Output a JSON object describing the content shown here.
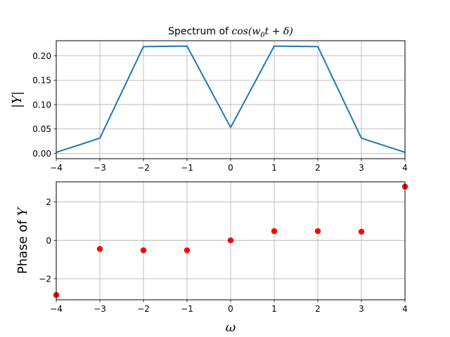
{
  "chart_data": [
    {
      "type": "line",
      "title": {
        "prefix": "Spectrum of ",
        "math": "cos(w",
        "sub": "0",
        "mid": "t + δ",
        "suffix": ")"
      },
      "ylabel": "|Y|",
      "xlabel": "",
      "x": [
        -4,
        -3,
        -2,
        -1,
        0,
        1,
        2,
        3,
        4
      ],
      "series": [
        {
          "values": [
            0.002,
            0.031,
            0.219,
            0.22,
            0.053,
            0.22,
            0.219,
            0.031,
            0.002
          ],
          "color": "#1f77b4"
        }
      ],
      "xlim": [
        -4,
        4
      ],
      "ylim": [
        -0.011,
        0.231
      ],
      "xticks": [
        "−4",
        "−3",
        "−2",
        "−1",
        "0",
        "1",
        "2",
        "3",
        "4"
      ],
      "yticks": [
        "0.00",
        "0.05",
        "0.10",
        "0.15",
        "0.20"
      ],
      "ytick_values": [
        0,
        0.05,
        0.1,
        0.15,
        0.2
      ],
      "grid": true
    },
    {
      "type": "scatter",
      "title": "",
      "ylabel": "Phase of Y",
      "xlabel": "ω",
      "x": [
        -4,
        -3,
        -2,
        -1,
        0,
        1,
        2,
        3,
        4
      ],
      "series": [
        {
          "values": [
            -2.85,
            -0.45,
            -0.52,
            -0.52,
            0.0,
            0.48,
            0.48,
            0.45,
            2.8
          ],
          "color": "#ff0000"
        }
      ],
      "xlim": [
        -4,
        4
      ],
      "ylim": [
        -3.1,
        3.05
      ],
      "xticks": [
        "−4",
        "−3",
        "−2",
        "−1",
        "0",
        "1",
        "2",
        "3",
        "4"
      ],
      "yticks": [
        "−2",
        "0",
        "2"
      ],
      "ytick_values": [
        -2,
        0,
        2
      ],
      "grid": true
    }
  ]
}
